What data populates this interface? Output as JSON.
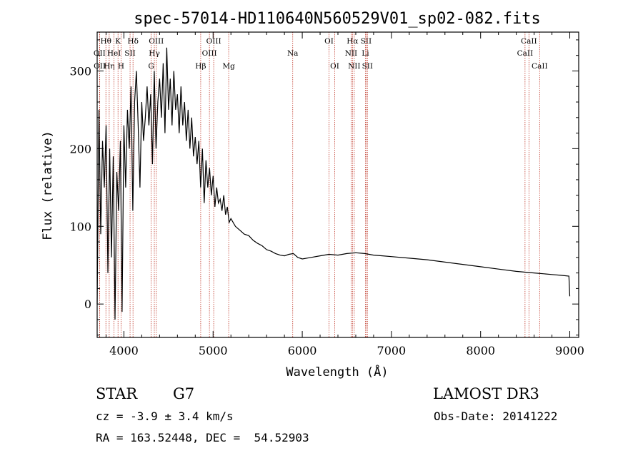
{
  "chart_data": {
    "type": "line",
    "title": "spec-57014-HD110640N560529V01_sp02-082.fits",
    "xlabel": "Wavelength (Å)",
    "ylabel": "Flux (relative)",
    "xlim": [
      3700,
      9100
    ],
    "ylim": [
      -43,
      350
    ],
    "x_ticks": [
      4000,
      5000,
      6000,
      7000,
      8000,
      9000
    ],
    "y_ticks": [
      0,
      100,
      200,
      300
    ],
    "grid": false,
    "series": [
      {
        "name": "spectrum",
        "x": [
          3700,
          3720,
          3740,
          3760,
          3780,
          3800,
          3820,
          3840,
          3860,
          3880,
          3900,
          3920,
          3940,
          3960,
          3980,
          4000,
          4020,
          4040,
          4060,
          4080,
          4100,
          4120,
          4140,
          4160,
          4180,
          4200,
          4220,
          4240,
          4260,
          4280,
          4300,
          4320,
          4340,
          4360,
          4380,
          4400,
          4420,
          4440,
          4460,
          4480,
          4500,
          4520,
          4540,
          4560,
          4580,
          4600,
          4620,
          4640,
          4660,
          4680,
          4700,
          4720,
          4740,
          4760,
          4780,
          4800,
          4820,
          4840,
          4860,
          4880,
          4900,
          4920,
          4940,
          4960,
          4980,
          5000,
          5020,
          5040,
          5060,
          5080,
          5100,
          5120,
          5140,
          5160,
          5180,
          5200,
          5250,
          5300,
          5350,
          5400,
          5450,
          5500,
          5550,
          5600,
          5650,
          5700,
          5750,
          5800,
          5850,
          5900,
          5950,
          6000,
          6100,
          6200,
          6300,
          6400,
          6500,
          6600,
          6700,
          6800,
          6900,
          7000,
          7200,
          7400,
          7600,
          7800,
          8000,
          8200,
          8400,
          8600,
          8800,
          8900,
          8990,
          9000
        ],
        "values": [
          0,
          250,
          90,
          210,
          150,
          230,
          40,
          200,
          60,
          190,
          -20,
          170,
          120,
          210,
          -10,
          230,
          150,
          250,
          200,
          280,
          120,
          260,
          300,
          230,
          150,
          260,
          210,
          240,
          280,
          230,
          270,
          180,
          300,
          200,
          260,
          290,
          240,
          310,
          220,
          330,
          250,
          290,
          230,
          300,
          250,
          270,
          220,
          280,
          230,
          260,
          210,
          250,
          200,
          240,
          190,
          215,
          180,
          210,
          150,
          200,
          130,
          185,
          150,
          175,
          140,
          165,
          125,
          150,
          130,
          135,
          120,
          140,
          115,
          125,
          105,
          110,
          100,
          95,
          90,
          88,
          82,
          78,
          75,
          70,
          68,
          65,
          63,
          62,
          64,
          65,
          60,
          58,
          60,
          62,
          64,
          63,
          65,
          66,
          65,
          63,
          62,
          61,
          59,
          57,
          54,
          51,
          48,
          45,
          42,
          40,
          38,
          37,
          36,
          10
        ]
      }
    ],
    "line_markers": [
      {
        "label": "Hθ",
        "wavelength": 3798,
        "row": 0
      },
      {
        "label": "OII",
        "wavelength": 3727,
        "row": 1
      },
      {
        "label": "OII",
        "wavelength": 3729,
        "row": 2
      },
      {
        "label": "Hη",
        "wavelength": 3835,
        "row": 2
      },
      {
        "label": "HeI",
        "wavelength": 3889,
        "row": 1
      },
      {
        "label": "K",
        "wavelength": 3934,
        "row": 0
      },
      {
        "label": "H",
        "wavelength": 3968,
        "row": 2
      },
      {
        "label": "SII",
        "wavelength": 4069,
        "row": 1
      },
      {
        "label": "Hδ",
        "wavelength": 4102,
        "row": 0
      },
      {
        "label": "OIII",
        "wavelength": 4363,
        "row": 0
      },
      {
        "label": "Hγ",
        "wavelength": 4341,
        "row": 1
      },
      {
        "label": "G",
        "wavelength": 4305,
        "row": 2
      },
      {
        "label": "Hβ",
        "wavelength": 4861,
        "row": 2
      },
      {
        "label": "OIII",
        "wavelength": 5007,
        "row": 0
      },
      {
        "label": "OIII",
        "wavelength": 4959,
        "row": 1
      },
      {
        "label": "Mg",
        "wavelength": 5175,
        "row": 2
      },
      {
        "label": "Na",
        "wavelength": 5893,
        "row": 1
      },
      {
        "label": "OI",
        "wavelength": 6300,
        "row": 0
      },
      {
        "label": "OI",
        "wavelength": 6364,
        "row": 2
      },
      {
        "label": "Hα",
        "wavelength": 6563,
        "row": 0
      },
      {
        "label": "NII",
        "wavelength": 6548,
        "row": 1
      },
      {
        "label": "NII",
        "wavelength": 6583,
        "row": 2
      },
      {
        "label": "SII",
        "wavelength": 6716,
        "row": 0
      },
      {
        "label": "Li",
        "wavelength": 6708,
        "row": 1
      },
      {
        "label": "SII",
        "wavelength": 6731,
        "row": 2
      },
      {
        "label": "CaII",
        "wavelength": 8542,
        "row": 0
      },
      {
        "label": "CaII",
        "wavelength": 8498,
        "row": 1
      },
      {
        "label": "CaII",
        "wavelength": 8662,
        "row": 2
      }
    ],
    "colors": {
      "spectrum": "#000000",
      "marker": "#c0392b",
      "axes": "#000000"
    }
  },
  "info": {
    "object_type": "STAR",
    "subclass": "G7",
    "survey": "LAMOST DR3",
    "cz": "cz = -3.9 ± 3.4 km/s",
    "obs_date": "Obs-Date: 20141222",
    "coords": "RA = 163.52448, DEC =  54.52903"
  }
}
